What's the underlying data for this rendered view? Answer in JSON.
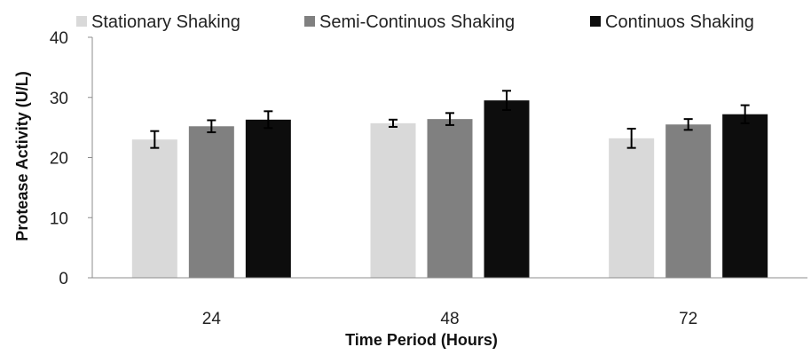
{
  "chart_data": {
    "type": "bar",
    "title": "",
    "xlabel": "Time Period (Hours)",
    "ylabel": "Protease Activity (U/L)",
    "categories": [
      "24",
      "48",
      "72"
    ],
    "ylim": [
      0,
      40
    ],
    "yticks": [
      0,
      10,
      20,
      30,
      40
    ],
    "legend_position": "top",
    "grid": false,
    "series": [
      {
        "name": "Stationary Shaking",
        "color": "#d9d9d9",
        "values": [
          23.0,
          25.7,
          23.2
        ],
        "errors": [
          1.4,
          0.6,
          1.6
        ]
      },
      {
        "name": "Semi-Continuos Shaking",
        "color": "#808080",
        "values": [
          25.2,
          26.4,
          25.5
        ],
        "errors": [
          1.0,
          1.0,
          0.9
        ]
      },
      {
        "name": "Continuos Shaking",
        "color": "#0d0d0d",
        "values": [
          26.3,
          29.5,
          27.2
        ],
        "errors": [
          1.4,
          1.6,
          1.5
        ]
      }
    ]
  }
}
